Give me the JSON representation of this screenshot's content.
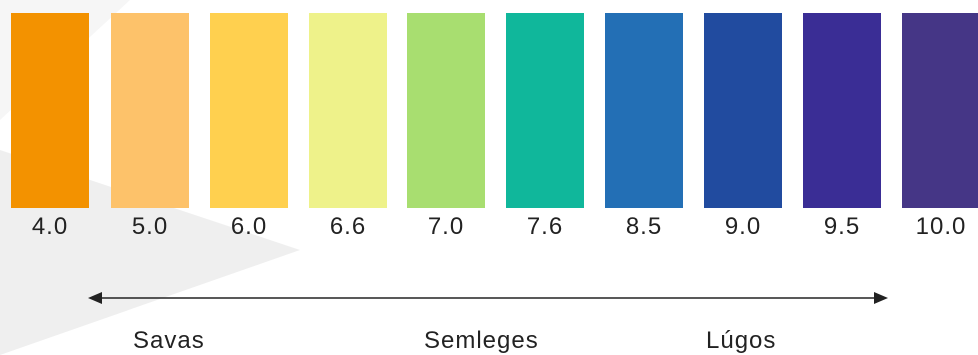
{
  "scale": {
    "swatches": [
      {
        "ph": "4.0",
        "color": "#f39200"
      },
      {
        "ph": "5.0",
        "color": "#fdc26a"
      },
      {
        "ph": "6.0",
        "color": "#ffd04f"
      },
      {
        "ph": "6.6",
        "color": "#eef28a"
      },
      {
        "ph": "7.0",
        "color": "#a8de70"
      },
      {
        "ph": "7.6",
        "color": "#10b79b"
      },
      {
        "ph": "8.5",
        "color": "#236fb5"
      },
      {
        "ph": "9.0",
        "color": "#214b9f"
      },
      {
        "ph": "9.5",
        "color": "#3a2d95"
      },
      {
        "ph": "10.0",
        "color": "#453686"
      }
    ]
  },
  "categories": {
    "acid": "Savas",
    "neutral": "Semleges",
    "alkaline": "Lúgos"
  },
  "arrow": {
    "direction": "bidirectional",
    "color": "#222222"
  }
}
